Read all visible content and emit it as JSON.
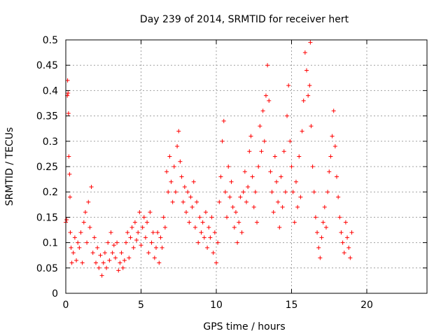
{
  "chart_data": {
    "type": "scatter",
    "title": "Day 239 of 2014, SRMTID for receiver hert",
    "xlabel": "GPS time / hours",
    "ylabel": "SRMTID / TECUs",
    "xlim": [
      0,
      24
    ],
    "ylim": [
      0,
      0.5
    ],
    "xticks": [
      0,
      5,
      10,
      15,
      20
    ],
    "xtick_labels": [
      "0",
      "5",
      "10",
      "15",
      "20"
    ],
    "yticks": [
      0,
      0.05,
      0.1,
      0.15,
      0.2,
      0.25,
      0.3,
      0.35,
      0.4,
      0.45,
      0.5
    ],
    "ytick_labels": [
      "0",
      "0.05",
      "0.1",
      "0.15",
      "0.2",
      "0.25",
      "0.3",
      "0.35",
      "0.4",
      "0.45",
      "0.5"
    ],
    "grid": true,
    "marker": "plus",
    "color": "#ff0000",
    "series": [
      {
        "values": [
          [
            0.0,
            0.14
          ],
          [
            0.05,
            0.145
          ],
          [
            0.1,
            0.39
          ],
          [
            0.12,
            0.42
          ],
          [
            0.15,
            0.395
          ],
          [
            0.18,
            0.355
          ],
          [
            0.2,
            0.27
          ],
          [
            0.25,
            0.235
          ],
          [
            0.28,
            0.19
          ],
          [
            0.3,
            0.12
          ],
          [
            0.35,
            0.09
          ],
          [
            0.4,
            0.06
          ],
          [
            0.5,
            0.08
          ],
          [
            0.6,
            0.11
          ],
          [
            0.7,
            0.065
          ],
          [
            0.8,
            0.1
          ],
          [
            0.9,
            0.09
          ],
          [
            1.0,
            0.12
          ],
          [
            1.1,
            0.06
          ],
          [
            1.2,
            0.14
          ],
          [
            1.3,
            0.16
          ],
          [
            1.4,
            0.1
          ],
          [
            1.5,
            0.18
          ],
          [
            1.6,
            0.13
          ],
          [
            1.7,
            0.21
          ],
          [
            1.8,
            0.08
          ],
          [
            1.9,
            0.11
          ],
          [
            2.0,
            0.06
          ],
          [
            2.1,
            0.09
          ],
          [
            2.2,
            0.05
          ],
          [
            2.3,
            0.075
          ],
          [
            2.4,
            0.035
          ],
          [
            2.5,
            0.06
          ],
          [
            2.6,
            0.08
          ],
          [
            2.7,
            0.05
          ],
          [
            2.8,
            0.1
          ],
          [
            2.9,
            0.065
          ],
          [
            3.0,
            0.12
          ],
          [
            3.1,
            0.08
          ],
          [
            3.2,
            0.095
          ],
          [
            3.3,
            0.07
          ],
          [
            3.4,
            0.1
          ],
          [
            3.5,
            0.045
          ],
          [
            3.6,
            0.06
          ],
          [
            3.7,
            0.08
          ],
          [
            3.8,
            0.05
          ],
          [
            3.9,
            0.065
          ],
          [
            4.0,
            0.1
          ],
          [
            4.1,
            0.12
          ],
          [
            4.2,
            0.07
          ],
          [
            4.3,
            0.11
          ],
          [
            4.4,
            0.13
          ],
          [
            4.5,
            0.09
          ],
          [
            4.6,
            0.14
          ],
          [
            4.7,
            0.105
          ],
          [
            4.8,
            0.12
          ],
          [
            4.9,
            0.16
          ],
          [
            5.0,
            0.095
          ],
          [
            5.1,
            0.13
          ],
          [
            5.2,
            0.15
          ],
          [
            5.3,
            0.11
          ],
          [
            5.4,
            0.14
          ],
          [
            5.5,
            0.08
          ],
          [
            5.6,
            0.16
          ],
          [
            5.7,
            0.1
          ],
          [
            5.8,
            0.12
          ],
          [
            5.9,
            0.07
          ],
          [
            6.0,
            0.09
          ],
          [
            6.1,
            0.12
          ],
          [
            6.2,
            0.06
          ],
          [
            6.3,
            0.11
          ],
          [
            6.4,
            0.09
          ],
          [
            6.5,
            0.15
          ],
          [
            6.6,
            0.13
          ],
          [
            6.7,
            0.24
          ],
          [
            6.8,
            0.2
          ],
          [
            6.9,
            0.27
          ],
          [
            7.0,
            0.22
          ],
          [
            7.1,
            0.18
          ],
          [
            7.2,
            0.25
          ],
          [
            7.3,
            0.2
          ],
          [
            7.4,
            0.29
          ],
          [
            7.5,
            0.32
          ],
          [
            7.6,
            0.26
          ],
          [
            7.7,
            0.23
          ],
          [
            7.8,
            0.18
          ],
          [
            7.9,
            0.21
          ],
          [
            8.0,
            0.16
          ],
          [
            8.1,
            0.2
          ],
          [
            8.2,
            0.14
          ],
          [
            8.3,
            0.19
          ],
          [
            8.4,
            0.17
          ],
          [
            8.5,
            0.22
          ],
          [
            8.6,
            0.13
          ],
          [
            8.7,
            0.18
          ],
          [
            8.8,
            0.1
          ],
          [
            8.9,
            0.15
          ],
          [
            9.0,
            0.12
          ],
          [
            9.1,
            0.14
          ],
          [
            9.2,
            0.11
          ],
          [
            9.3,
            0.16
          ],
          [
            9.4,
            0.09
          ],
          [
            9.5,
            0.13
          ],
          [
            9.6,
            0.11
          ],
          [
            9.7,
            0.15
          ],
          [
            9.8,
            0.08
          ],
          [
            9.9,
            0.12
          ],
          [
            10.0,
            0.06
          ],
          [
            10.1,
            0.1
          ],
          [
            10.2,
            0.18
          ],
          [
            10.3,
            0.23
          ],
          [
            10.4,
            0.3
          ],
          [
            10.5,
            0.34
          ],
          [
            10.6,
            0.2
          ],
          [
            10.7,
            0.15
          ],
          [
            10.8,
            0.25
          ],
          [
            10.9,
            0.19
          ],
          [
            11.0,
            0.22
          ],
          [
            11.1,
            0.17
          ],
          [
            11.2,
            0.13
          ],
          [
            11.3,
            0.16
          ],
          [
            11.4,
            0.1
          ],
          [
            11.5,
            0.14
          ],
          [
            11.6,
            0.19
          ],
          [
            11.7,
            0.12
          ],
          [
            11.8,
            0.2
          ],
          [
            11.9,
            0.24
          ],
          [
            12.0,
            0.18
          ],
          [
            12.1,
            0.21
          ],
          [
            12.2,
            0.28
          ],
          [
            12.3,
            0.31
          ],
          [
            12.4,
            0.23
          ],
          [
            12.5,
            0.17
          ],
          [
            12.6,
            0.2
          ],
          [
            12.7,
            0.14
          ],
          [
            12.8,
            0.25
          ],
          [
            12.9,
            0.33
          ],
          [
            13.0,
            0.28
          ],
          [
            13.1,
            0.36
          ],
          [
            13.2,
            0.3
          ],
          [
            13.3,
            0.39
          ],
          [
            13.4,
            0.45
          ],
          [
            13.5,
            0.38
          ],
          [
            13.6,
            0.24
          ],
          [
            13.7,
            0.2
          ],
          [
            13.8,
            0.16
          ],
          [
            13.9,
            0.27
          ],
          [
            14.0,
            0.22
          ],
          [
            14.1,
            0.18
          ],
          [
            14.2,
            0.13
          ],
          [
            14.3,
            0.23
          ],
          [
            14.4,
            0.17
          ],
          [
            14.5,
            0.28
          ],
          [
            14.6,
            0.2
          ],
          [
            14.7,
            0.35
          ],
          [
            14.8,
            0.41
          ],
          [
            14.9,
            0.3
          ],
          [
            15.0,
            0.25
          ],
          [
            15.1,
            0.2
          ],
          [
            15.2,
            0.14
          ],
          [
            15.3,
            0.22
          ],
          [
            15.4,
            0.17
          ],
          [
            15.5,
            0.27
          ],
          [
            15.6,
            0.19
          ],
          [
            15.7,
            0.32
          ],
          [
            15.8,
            0.38
          ],
          [
            15.9,
            0.475
          ],
          [
            16.0,
            0.44
          ],
          [
            16.1,
            0.39
          ],
          [
            16.2,
            0.41
          ],
          [
            16.25,
            0.495
          ],
          [
            16.3,
            0.33
          ],
          [
            16.4,
            0.25
          ],
          [
            16.5,
            0.2
          ],
          [
            16.6,
            0.15
          ],
          [
            16.7,
            0.12
          ],
          [
            16.8,
            0.09
          ],
          [
            16.9,
            0.07
          ],
          [
            17.0,
            0.11
          ],
          [
            17.1,
            0.14
          ],
          [
            17.2,
            0.17
          ],
          [
            17.3,
            0.13
          ],
          [
            17.4,
            0.2
          ],
          [
            17.5,
            0.24
          ],
          [
            17.6,
            0.27
          ],
          [
            17.7,
            0.31
          ],
          [
            17.8,
            0.36
          ],
          [
            17.9,
            0.29
          ],
          [
            18.0,
            0.23
          ],
          [
            18.1,
            0.19
          ],
          [
            18.2,
            0.15
          ],
          [
            18.3,
            0.12
          ],
          [
            18.4,
            0.1
          ],
          [
            18.5,
            0.08
          ],
          [
            18.6,
            0.14
          ],
          [
            18.7,
            0.11
          ],
          [
            18.8,
            0.09
          ],
          [
            18.9,
            0.07
          ],
          [
            19.0,
            0.12
          ]
        ]
      }
    ]
  }
}
